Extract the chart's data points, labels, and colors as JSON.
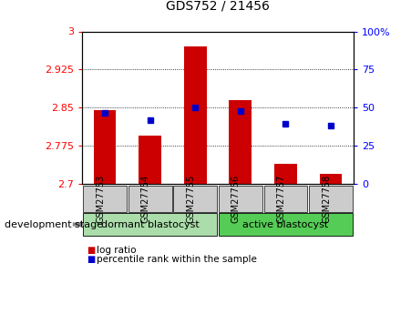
{
  "title": "GDS752 / 21456",
  "samples": [
    "GSM27753",
    "GSM27754",
    "GSM27755",
    "GSM27756",
    "GSM27757",
    "GSM27758"
  ],
  "bar_values": [
    2.845,
    2.795,
    2.97,
    2.865,
    2.74,
    2.72
  ],
  "percentile_values": [
    2.84,
    2.825,
    2.85,
    2.844,
    2.818,
    2.815
  ],
  "baseline": 2.7,
  "ylim": [
    2.7,
    3.0
  ],
  "y2lim": [
    0,
    100
  ],
  "yticks": [
    2.7,
    2.775,
    2.85,
    2.925,
    3.0
  ],
  "ytick_labels": [
    "2.7",
    "2.775",
    "2.85",
    "2.925",
    "3"
  ],
  "y2ticks": [
    0,
    25,
    50,
    75,
    100
  ],
  "y2tick_labels": [
    "0",
    "25",
    "50",
    "75",
    "100%"
  ],
  "bar_color": "#cc0000",
  "dot_color": "#0000cc",
  "groups": [
    {
      "label": "dormant blastocyst",
      "indices": [
        0,
        1,
        2
      ],
      "color": "#aaddaa"
    },
    {
      "label": "active blastocyst",
      "indices": [
        3,
        4,
        5
      ],
      "color": "#55cc55"
    }
  ],
  "group_label": "development stage",
  "legend_items": [
    {
      "label": "log ratio",
      "color": "#cc0000"
    },
    {
      "label": "percentile rank within the sample",
      "color": "#0000cc"
    }
  ],
  "plot_bg": "#ffffff",
  "tick_label_bg": "#cccccc",
  "bar_width": 0.5
}
